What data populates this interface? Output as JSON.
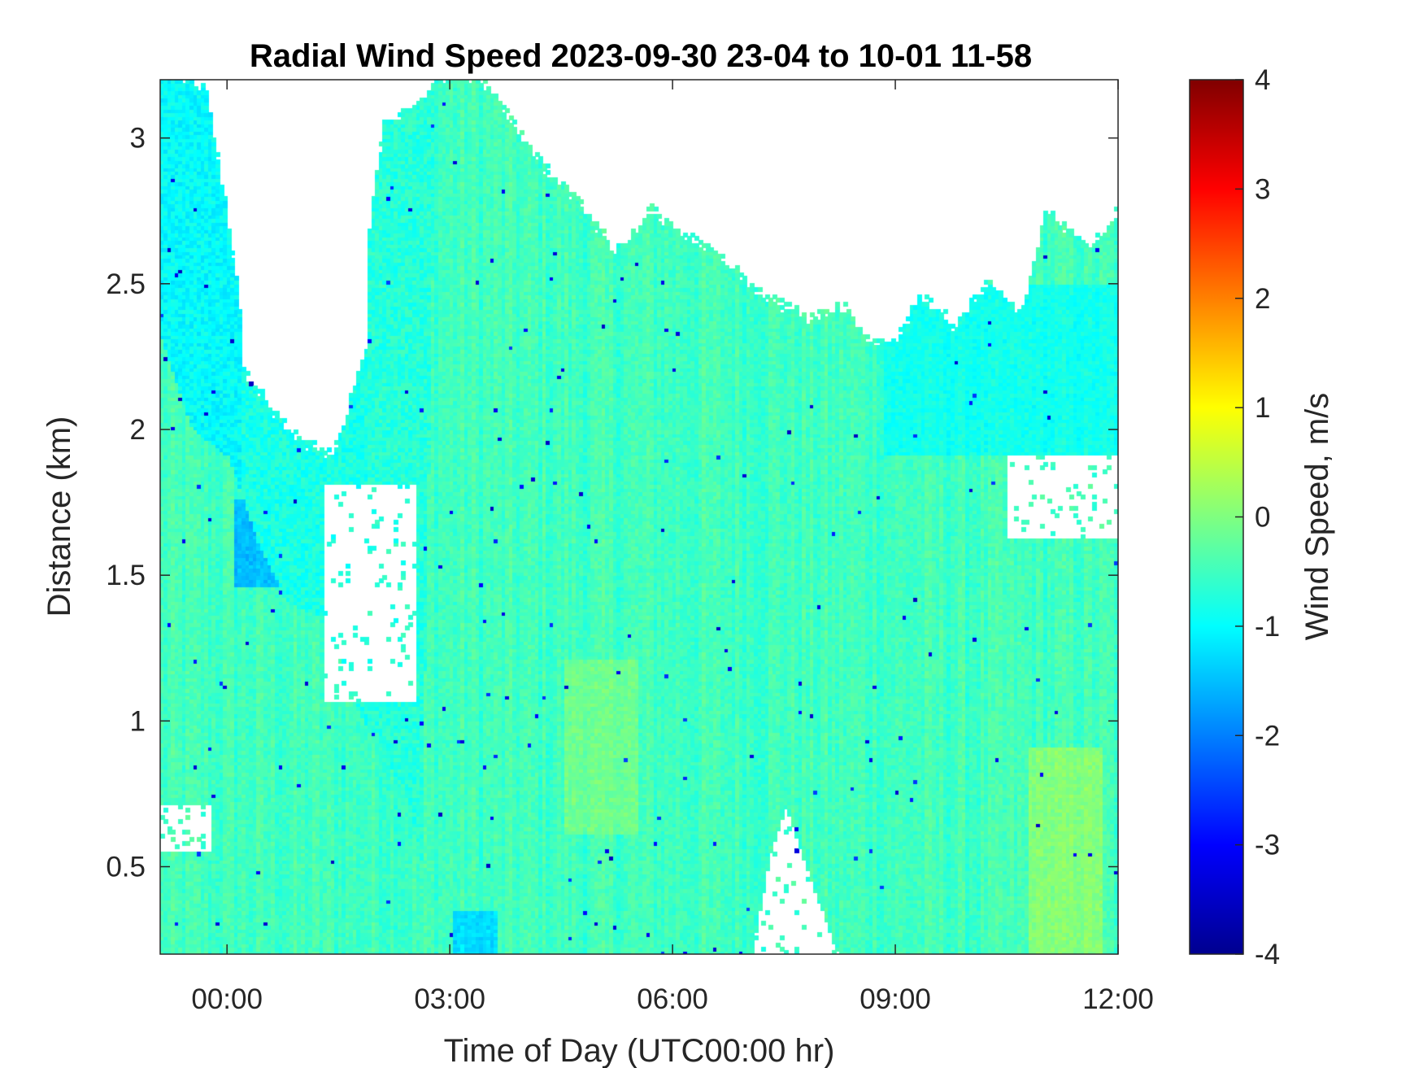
{
  "chart_data": {
    "type": "heatmap",
    "title": "Radial Wind Speed 2023-09-30 23-04 to 10-01 11-58",
    "xlabel": "Time of Day (UTC00:00 hr)",
    "ylabel": "Distance (km)",
    "x_ticks": [
      "00:00",
      "03:00",
      "06:00",
      "09:00",
      "12:00"
    ],
    "x_tick_hours": [
      0,
      3,
      6,
      9,
      12
    ],
    "xlim_hours": [
      -0.9,
      12.0
    ],
    "y_ticks": [
      "0.5",
      "1",
      "1.5",
      "2",
      "2.5",
      "3"
    ],
    "y_tick_values": [
      0.5,
      1,
      1.5,
      2,
      2.5,
      3
    ],
    "ylim_km": [
      0.2,
      3.2
    ],
    "colorbar": {
      "label": "Wind Speed, m/s",
      "ticks": [
        "-4",
        "-3",
        "-2",
        "-1",
        "0",
        "1",
        "2",
        "3",
        "4"
      ],
      "tick_values": [
        -4,
        -3,
        -2,
        -1,
        0,
        1,
        2,
        3,
        4
      ],
      "clim": [
        -4,
        4
      ],
      "colormap": "jet"
    },
    "background_value": -0.5,
    "cell_size": {
      "hours": 0.05,
      "km": 0.0125
    },
    "valid_data_regions": [
      {
        "hours": [
          -0.9,
          12.0
        ],
        "km_top": [
          [
            -0.9,
            2.3
          ],
          [
            -0.5,
            2.0
          ],
          [
            0.0,
            1.9
          ],
          [
            0.4,
            1.6
          ],
          [
            0.8,
            1.4
          ],
          [
            1.2,
            1.35
          ],
          [
            1.5,
            1.2
          ],
          [
            1.8,
            1.0
          ],
          [
            2.1,
            0.9
          ],
          [
            2.4,
            0.7
          ],
          [
            2.6,
            0.5
          ],
          [
            2.8,
            3.2
          ],
          [
            3.0,
            3.2
          ],
          [
            3.4,
            3.2
          ],
          [
            3.8,
            3.05
          ],
          [
            4.3,
            2.88
          ],
          [
            4.8,
            2.75
          ],
          [
            5.2,
            2.6
          ],
          [
            5.7,
            2.75
          ],
          [
            6.0,
            2.68
          ],
          [
            6.6,
            2.6
          ],
          [
            7.2,
            2.45
          ],
          [
            7.8,
            2.38
          ],
          [
            8.3,
            2.42
          ],
          [
            8.6,
            2.3
          ],
          [
            9.0,
            2.3
          ],
          [
            9.3,
            2.45
          ],
          [
            9.8,
            2.35
          ],
          [
            10.2,
            2.5
          ],
          [
            10.7,
            2.4
          ],
          [
            11.0,
            2.75
          ],
          [
            11.3,
            2.68
          ],
          [
            11.6,
            2.62
          ],
          [
            12.0,
            2.75
          ]
        ]
      }
    ],
    "patches": [
      {
        "hours": [
          -0.9,
          0.2
        ],
        "km_top": [
          [
            -0.9,
            3.2
          ],
          [
            -0.6,
            3.2
          ],
          [
            -0.3,
            3.15
          ],
          [
            0.0,
            2.7
          ],
          [
            0.2,
            2.3
          ]
        ],
        "value": -1.0
      },
      {
        "hours": [
          1.9,
          2.8
        ],
        "km_top": [
          [
            1.9,
            2.7
          ],
          [
            2.1,
            3.05
          ],
          [
            2.5,
            3.1
          ],
          [
            2.8,
            3.2
          ]
        ],
        "value": -0.7
      },
      {
        "hours": [
          0.2,
          1.9
        ],
        "km_top": [
          [
            0.2,
            2.2
          ],
          [
            0.6,
            2.05
          ],
          [
            1.0,
            1.95
          ],
          [
            1.4,
            1.9
          ],
          [
            1.9,
            2.3
          ]
        ],
        "value": -0.8
      }
    ],
    "gaps": [
      {
        "hours": [
          -0.9,
          -0.2
        ],
        "km": [
          0.55,
          0.7
        ]
      },
      {
        "hours": [
          7.05,
          8.2
        ],
        "km_shape": [
          [
            7.05,
            0.2
          ],
          [
            7.3,
            0.55
          ],
          [
            7.5,
            0.7
          ],
          [
            7.7,
            0.55
          ],
          [
            8.2,
            0.2
          ]
        ]
      },
      {
        "hours": [
          10.5,
          12.0
        ],
        "km": [
          1.62,
          1.9
        ]
      },
      {
        "hours": [
          1.3,
          2.5
        ],
        "km": [
          1.05,
          1.8
        ]
      }
    ],
    "features": [
      {
        "hours": [
          3.0,
          3.6
        ],
        "km": [
          0.2,
          0.35
        ],
        "value": -1.8
      },
      {
        "hours": [
          4.5,
          5.5
        ],
        "km": [
          0.6,
          1.2
        ],
        "value": 0.1
      },
      {
        "hours": [
          10.8,
          11.8
        ],
        "km": [
          0.2,
          0.9
        ],
        "value": 0.4
      },
      {
        "hours": [
          0.1,
          1.0
        ],
        "km": [
          1.45,
          1.75
        ],
        "value": -2.2
      },
      {
        "hours": [
          8.8,
          12.0
        ],
        "km": [
          1.9,
          2.5
        ],
        "value": -1.1
      }
    ]
  }
}
